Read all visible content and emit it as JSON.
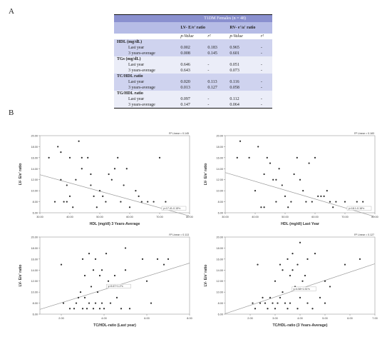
{
  "panels": {
    "a": "A",
    "b": "B"
  },
  "table": {
    "title": "T1DM Females (n = 48)",
    "col_groups": [
      "LV- E/e' ratio",
      "RV- e'/a' ratio"
    ],
    "sub_headers": [
      "p-Value",
      "r²",
      "p-Value",
      "r²"
    ],
    "sections": [
      {
        "name": "HDL (mg/dL)",
        "rows": [
          {
            "label": "Last year",
            "values": [
              "0.002",
              "0.183",
              "0.965",
              "-"
            ]
          },
          {
            "label": "3 years-average",
            "values": [
              "0.008",
              "0.145",
              "0.601",
              "-"
            ]
          }
        ]
      },
      {
        "name": "TGs (mg/dL)",
        "rows": [
          {
            "label": "Last year",
            "values": [
              "0.646",
              "-",
              "0.051",
              "-"
            ]
          },
          {
            "label": "3 years-average",
            "values": [
              "0.643",
              "-",
              "0.073",
              "-"
            ]
          }
        ]
      },
      {
        "name": "TC/HDL ratio",
        "rows": [
          {
            "label": "Last year",
            "values": [
              "0.020",
              "0.113",
              "0.116",
              "-"
            ]
          },
          {
            "label": "3 years-average",
            "values": [
              "0.013",
              "0.127",
              "0.058",
              "-"
            ]
          }
        ]
      },
      {
        "name": "TG/HDL ratio",
        "rows": [
          {
            "label": "Last year",
            "values": [
              "0.097",
              "-",
              "0.112",
              "-"
            ]
          },
          {
            "label": "3 years-average",
            "values": [
              "0.147",
              "-",
              "0.064",
              "-"
            ]
          }
        ]
      }
    ]
  },
  "chart_data": [
    {
      "type": "scatter",
      "xlabel": "HDL (mg/dl) 3 Years-Average",
      "ylabel": "LV- E/e' ratio",
      "xlim": [
        30,
        80
      ],
      "ylim": [
        6,
        20
      ],
      "xticks": [
        "30.00",
        "40.00",
        "50.00",
        "60.00",
        "70.00",
        "80.00"
      ],
      "yticks": [
        "6.00",
        "8.00",
        "10.00",
        "12.00",
        "14.00",
        "16.00",
        "18.00",
        "20.00"
      ],
      "rsq": "R² Linear = 0.145",
      "fit": {
        "label": "y=17.41-0.15*x",
        "intercept": 17.41,
        "slope": -0.15
      },
      "points": [
        [
          33,
          16
        ],
        [
          35,
          8
        ],
        [
          36,
          18
        ],
        [
          37,
          17
        ],
        [
          37,
          12
        ],
        [
          38,
          8
        ],
        [
          39,
          11
        ],
        [
          39,
          8
        ],
        [
          40,
          16
        ],
        [
          40,
          9
        ],
        [
          41,
          7
        ],
        [
          42,
          12
        ],
        [
          43,
          19
        ],
        [
          44,
          16
        ],
        [
          44,
          14
        ],
        [
          46,
          16
        ],
        [
          47,
          13
        ],
        [
          47,
          11
        ],
        [
          48,
          9
        ],
        [
          49,
          7
        ],
        [
          50,
          10
        ],
        [
          51,
          9
        ],
        [
          52,
          8
        ],
        [
          53,
          13
        ],
        [
          54,
          12
        ],
        [
          55,
          14
        ],
        [
          56,
          16
        ],
        [
          57,
          8
        ],
        [
          58,
          11
        ],
        [
          59,
          14
        ],
        [
          60,
          7
        ],
        [
          62,
          10
        ],
        [
          63,
          9
        ],
        [
          64,
          8
        ],
        [
          66,
          8
        ],
        [
          68,
          8
        ],
        [
          70,
          16
        ],
        [
          72,
          8
        ],
        [
          75,
          7
        ],
        [
          77,
          7
        ]
      ]
    },
    {
      "type": "scatter",
      "xlabel": "HDL (mg/dl) Last Year",
      "ylabel": "LV- E/e' ratio",
      "xlim": [
        30,
        80
      ],
      "ylim": [
        6,
        20
      ],
      "xticks": [
        "30.00",
        "40.00",
        "50.00",
        "60.00",
        "70.00",
        "80.00"
      ],
      "yticks": [
        "6.00",
        "8.00",
        "10.00",
        "12.00",
        "14.00",
        "16.00",
        "18.00",
        "20.00"
      ],
      "rsq": "R² Linear = 0.183",
      "fit": {
        "label": "y=18.1-0.16*x",
        "intercept": 18.1,
        "slope": -0.16
      },
      "points": [
        [
          34,
          16
        ],
        [
          35,
          19
        ],
        [
          38,
          16
        ],
        [
          40,
          10
        ],
        [
          41,
          18
        ],
        [
          42,
          7
        ],
        [
          43,
          7
        ],
        [
          43,
          13
        ],
        [
          44,
          16
        ],
        [
          45,
          15
        ],
        [
          46,
          12
        ],
        [
          47,
          8
        ],
        [
          47,
          12
        ],
        [
          48,
          14
        ],
        [
          49,
          11
        ],
        [
          50,
          9
        ],
        [
          51,
          7
        ],
        [
          52,
          8
        ],
        [
          53,
          13
        ],
        [
          54,
          16
        ],
        [
          55,
          12
        ],
        [
          56,
          10
        ],
        [
          57,
          8
        ],
        [
          58,
          15
        ],
        [
          59,
          8
        ],
        [
          60,
          16
        ],
        [
          61,
          9
        ],
        [
          62,
          9
        ],
        [
          63,
          9
        ],
        [
          64,
          10
        ],
        [
          65,
          8
        ],
        [
          66,
          7
        ],
        [
          67,
          8
        ],
        [
          70,
          8
        ],
        [
          73,
          7
        ],
        [
          74,
          8
        ],
        [
          76,
          8
        ]
      ]
    },
    {
      "type": "scatter",
      "xlabel": "TC/HDL-ratio (Last year)",
      "ylabel": "LV- E/e' ratio",
      "xlim": [
        1,
        8
      ],
      "ylim": [
        6,
        20
      ],
      "xticks": [
        "2.00",
        "4.00",
        "6.00",
        "8.00"
      ],
      "yticks": [
        "6.00",
        "8.00",
        "10.00",
        "12.00",
        "14.00",
        "16.00",
        "18.00",
        "20.00"
      ],
      "rsq": "R² Linear = 0.113",
      "fit": {
        "label": "y=5.67+1.2*x",
        "intercept": 5.67,
        "slope": 1.2
      },
      "points": [
        [
          2.0,
          15
        ],
        [
          2.1,
          8
        ],
        [
          2.4,
          7
        ],
        [
          2.6,
          7
        ],
        [
          2.7,
          8
        ],
        [
          2.8,
          9
        ],
        [
          2.9,
          10
        ],
        [
          3.0,
          7
        ],
        [
          3.0,
          16
        ],
        [
          3.1,
          9
        ],
        [
          3.1,
          13
        ],
        [
          3.2,
          7
        ],
        [
          3.3,
          8
        ],
        [
          3.3,
          17
        ],
        [
          3.4,
          11
        ],
        [
          3.5,
          7
        ],
        [
          3.5,
          14
        ],
        [
          3.6,
          8
        ],
        [
          3.6,
          16
        ],
        [
          3.7,
          10
        ],
        [
          3.8,
          7
        ],
        [
          3.8,
          13
        ],
        [
          3.9,
          8
        ],
        [
          3.9,
          14
        ],
        [
          4.0,
          7
        ],
        [
          4.1,
          17
        ],
        [
          4.2,
          12
        ],
        [
          4.3,
          8
        ],
        [
          4.4,
          11
        ],
        [
          4.5,
          13
        ],
        [
          4.6,
          9
        ],
        [
          4.8,
          7
        ],
        [
          5.0,
          14
        ],
        [
          5.0,
          18
        ],
        [
          5.2,
          7
        ],
        [
          5.8,
          16
        ],
        [
          6.0,
          12
        ],
        [
          6.2,
          8
        ],
        [
          6.5,
          16
        ],
        [
          6.8,
          15
        ],
        [
          7.0,
          16
        ]
      ]
    },
    {
      "type": "scatter",
      "xlabel": "TC/HDL-ratio (3 Years-Average)",
      "ylabel": "LV- E/e' ratio",
      "xlim": [
        1,
        7
      ],
      "ylim": [
        6,
        20
      ],
      "xticks": [
        "2.00",
        "3.00",
        "4.00",
        "5.00",
        "6.00",
        "7.00"
      ],
      "yticks": [
        "6.00",
        "8.00",
        "10.00",
        "12.00",
        "14.00",
        "16.00",
        "18.00",
        "20.00"
      ],
      "rsq": "R² Linear = 0.127",
      "fit": {
        "label": "y=4.58+1.51*x",
        "intercept": 4.58,
        "slope": 1.51
      },
      "points": [
        [
          2.1,
          8
        ],
        [
          2.2,
          7
        ],
        [
          2.3,
          15
        ],
        [
          2.4,
          8
        ],
        [
          2.5,
          9
        ],
        [
          2.6,
          8
        ],
        [
          2.7,
          7
        ],
        [
          2.8,
          9
        ],
        [
          2.9,
          8
        ],
        [
          3.0,
          7
        ],
        [
          3.0,
          12
        ],
        [
          3.1,
          8
        ],
        [
          3.2,
          9
        ],
        [
          3.2,
          15
        ],
        [
          3.3,
          10
        ],
        [
          3.3,
          14
        ],
        [
          3.4,
          8
        ],
        [
          3.5,
          7
        ],
        [
          3.5,
          16
        ],
        [
          3.6,
          8
        ],
        [
          3.6,
          13
        ],
        [
          3.7,
          14
        ],
        [
          3.7,
          17
        ],
        [
          3.8,
          11
        ],
        [
          3.9,
          7
        ],
        [
          3.9,
          15
        ],
        [
          4.0,
          9
        ],
        [
          4.0,
          19
        ],
        [
          4.1,
          12
        ],
        [
          4.2,
          13
        ],
        [
          4.3,
          8
        ],
        [
          4.3,
          16
        ],
        [
          4.5,
          7
        ],
        [
          4.6,
          17
        ],
        [
          4.8,
          9
        ],
        [
          5.0,
          8
        ],
        [
          5.0,
          12
        ],
        [
          5.2,
          11
        ],
        [
          5.8,
          15
        ],
        [
          6.4,
          16
        ]
      ]
    }
  ]
}
